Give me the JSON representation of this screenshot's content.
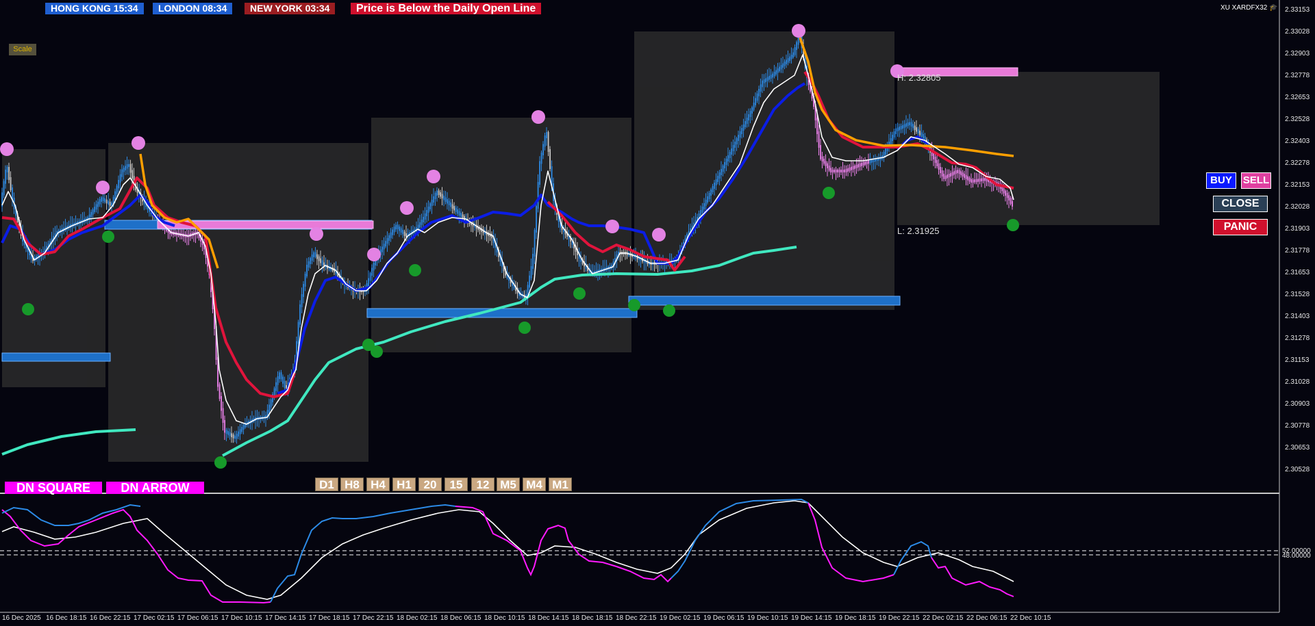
{
  "clocks": [
    {
      "label": "HONG KONG  15:34",
      "color": "#1f5fd0"
    },
    {
      "label": "LONDON  08:34",
      "color": "#1f5fd0"
    },
    {
      "label": "NEW YORK  03:34",
      "color": "#9b1d21"
    },
    {
      "label": "Price is Below the Daily Open Line",
      "color": "#d0102d"
    }
  ],
  "symbol": "XU XARDFX32",
  "scale_label": "Scale",
  "price_axis": [
    "2.33153",
    "2.33028",
    "2.32903",
    "2.32778",
    "2.32653",
    "2.32528",
    "2.32403",
    "2.32278",
    "2.32153",
    "2.32028",
    "2.31903",
    "2.31778",
    "2.31653",
    "2.31528",
    "2.31403",
    "2.31278",
    "2.31153",
    "2.31028",
    "2.30903",
    "2.30778",
    "2.30653",
    "2.30528"
  ],
  "indicator_axis": [
    "52.00000",
    "48.00000"
  ],
  "time_axis": [
    "16 Dec 2025",
    "16 Dec 18:15",
    "16 Dec 22:15",
    "17 Dec 02:15",
    "17 Dec 06:15",
    "17 Dec 10:15",
    "17 Dec 14:15",
    "17 Dec 18:15",
    "17 Dec 22:15",
    "18 Dec 02:15",
    "18 Dec 06:15",
    "18 Dec 10:15",
    "18 Dec 14:15",
    "18 Dec 18:15",
    "18 Dec 22:15",
    "19 Dec 02:15",
    "19 Dec 06:15",
    "19 Dec 10:15",
    "19 Dec 14:15",
    "19 Dec 18:15",
    "19 Dec 22:15",
    "22 Dec 02:15",
    "22 Dec 06:15",
    "22 Dec 10:15"
  ],
  "high_label": "H: 2.32805",
  "low_label": "L: 2.31925",
  "buttons": {
    "buy": "BUY",
    "sell": "SELL",
    "close": "CLOSE",
    "panic": "PANIC",
    "dn_square": "DN SQUARE",
    "dn_arrow": "DN ARROW"
  },
  "timeframes": [
    "D1",
    "H8",
    "H4",
    "H1",
    "20",
    "15",
    "12",
    "M5",
    "M4",
    "M1"
  ],
  "colors": {
    "bg": "#05050f",
    "bull": "#2c8ae6",
    "bear": "#ee82ee",
    "neutral": "#c8c8c8",
    "ma_blue": "#0b1de6",
    "ma_red": "#e0143c",
    "ma_orange": "#ff9f00",
    "ma_teal": "#40e8c0",
    "ma_white": "#ffffff",
    "swing_high": "#e382e3",
    "swing_low": "#179a2a",
    "zone": "#3a3a3a",
    "level_blue": "#1e70c8",
    "level_pink": "#e87ad8"
  }
}
